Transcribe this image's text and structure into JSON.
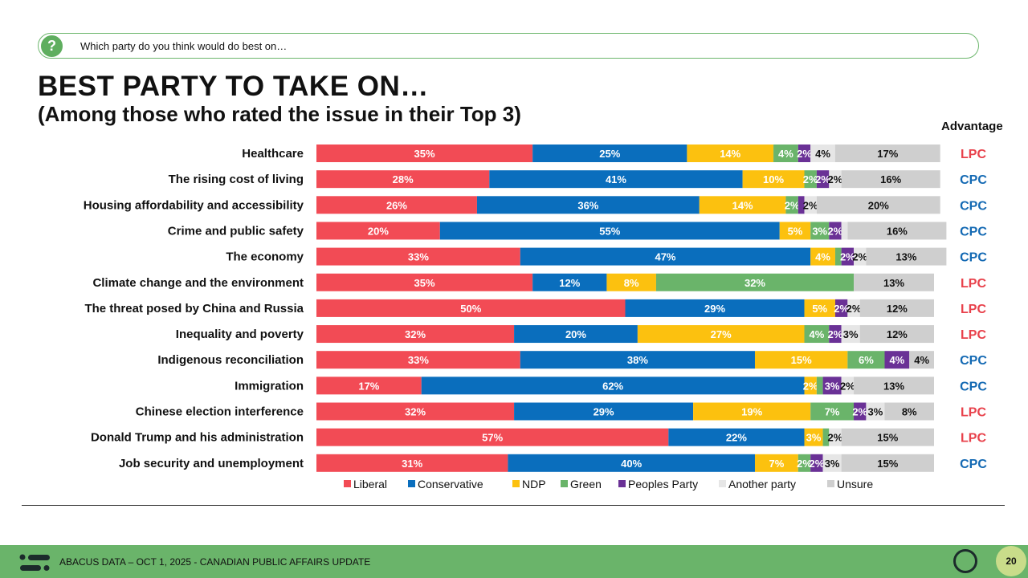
{
  "question": {
    "icon": "question-mark-icon",
    "icon_glyph": "?",
    "text": "Which party do you think would do best on…"
  },
  "title": "BEST PARTY TO TAKE ON…",
  "subtitle": "(Among those who rated the issue in their Top 3)",
  "advantage_header": "Advantage",
  "colors": {
    "Liberal": "#f24b55",
    "Conservative": "#0a6ebd",
    "NDP": "#fcc10f",
    "Green": "#6ab46a",
    "Peoples Party": "#6a3196",
    "Another party": "#e6e6e6",
    "Unsure": "#cfcfcf",
    "LPC": "#e8414b",
    "CPC": "#1369b3"
  },
  "chart_data": {
    "type": "bar",
    "orientation": "horizontal",
    "stacked": true,
    "categories": [
      "Healthcare",
      "The rising cost of living",
      "Housing affordability and accessibility",
      "Crime and public safety",
      "The economy",
      "Climate change and the environment",
      "The threat posed by China and Russia",
      "Inequality and poverty",
      "Indigenous reconciliation",
      "Immigration",
      "Chinese election interference",
      "Donald Trump and his administration",
      "Job security and unemployment"
    ],
    "series": [
      {
        "name": "Liberal",
        "values": [
          35,
          28,
          26,
          20,
          33,
          35,
          50,
          32,
          33,
          17,
          32,
          57,
          31
        ]
      },
      {
        "name": "Conservative",
        "values": [
          25,
          41,
          36,
          55,
          47,
          12,
          29,
          20,
          38,
          62,
          29,
          22,
          40
        ]
      },
      {
        "name": "NDP",
        "values": [
          14,
          10,
          14,
          5,
          4,
          8,
          5,
          27,
          15,
          2,
          19,
          3,
          7
        ]
      },
      {
        "name": "Green",
        "values": [
          4,
          2,
          2,
          3,
          1,
          32,
          0,
          4,
          6,
          1,
          7,
          1,
          2
        ]
      },
      {
        "name": "Peoples Party",
        "values": [
          2,
          2,
          1,
          2,
          2,
          0,
          2,
          2,
          4,
          3,
          2,
          0,
          2
        ]
      },
      {
        "name": "Another party",
        "values": [
          4,
          2,
          2,
          1,
          2,
          0,
          2,
          3,
          0,
          2,
          3,
          2,
          3
        ]
      },
      {
        "name": "Unsure",
        "values": [
          17,
          16,
          20,
          16,
          13,
          13,
          12,
          12,
          4,
          13,
          8,
          15,
          15
        ]
      }
    ],
    "label_min_value": 2,
    "advantage": [
      "LPC",
      "CPC",
      "CPC",
      "CPC",
      "CPC",
      "LPC",
      "LPC",
      "LPC",
      "CPC",
      "CPC",
      "LPC",
      "LPC",
      "CPC"
    ],
    "legend": [
      "Liberal",
      "Conservative",
      "NDP",
      "Green",
      "Peoples Party",
      "Another party",
      "Unsure"
    ],
    "legend_position": "bottom",
    "unit": "%",
    "xlim": [
      0,
      100
    ]
  },
  "footer": {
    "logo_icon": "abacus-logo-icon",
    "text": "ABACUS DATA – OCT 1, 2025 - CANADIAN PUBLIC AFFAIRS UPDATE",
    "ca_logo": "CA",
    "page_number": "20"
  }
}
